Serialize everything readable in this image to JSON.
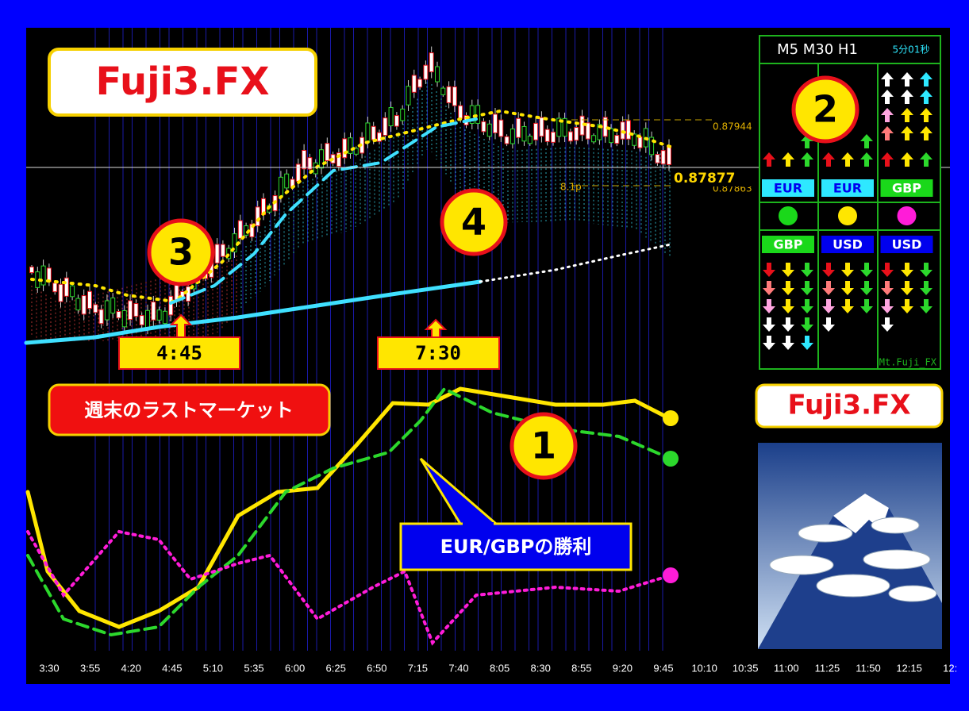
{
  "header": {
    "brand": "Fuji3.FX"
  },
  "badges": [
    "1",
    "2",
    "3",
    "4"
  ],
  "time_markers": [
    "4:45",
    "7:30"
  ],
  "banner": "週末のラストマーケット",
  "callout": "EUR/GBPの勝利",
  "side_brand": "Fuji3.FX",
  "panel": {
    "timeframes": "M5 M30 H1",
    "timer": "5分01秒",
    "top_currencies": [
      "EUR",
      "EUR",
      "GBP"
    ],
    "bottom_currencies": [
      "GBP",
      "USD",
      "USD"
    ],
    "footer": "Mt.Fuji_FX"
  },
  "price_labels": {
    "high": "0.87944",
    "current": "0.87877",
    "low": "0.87863",
    "spread": "8.1p"
  },
  "time_axis": [
    "3:30",
    "3:55",
    "4:20",
    "4:45",
    "5:10",
    "5:35",
    "6:00",
    "6:25",
    "6:50",
    "7:15",
    "7:40",
    "8:05",
    "8:30",
    "8:55",
    "9:20",
    "9:45",
    "10:10",
    "10:35",
    "11:00",
    "11:25",
    "11:50",
    "12:15",
    "12:"
  ]
}
